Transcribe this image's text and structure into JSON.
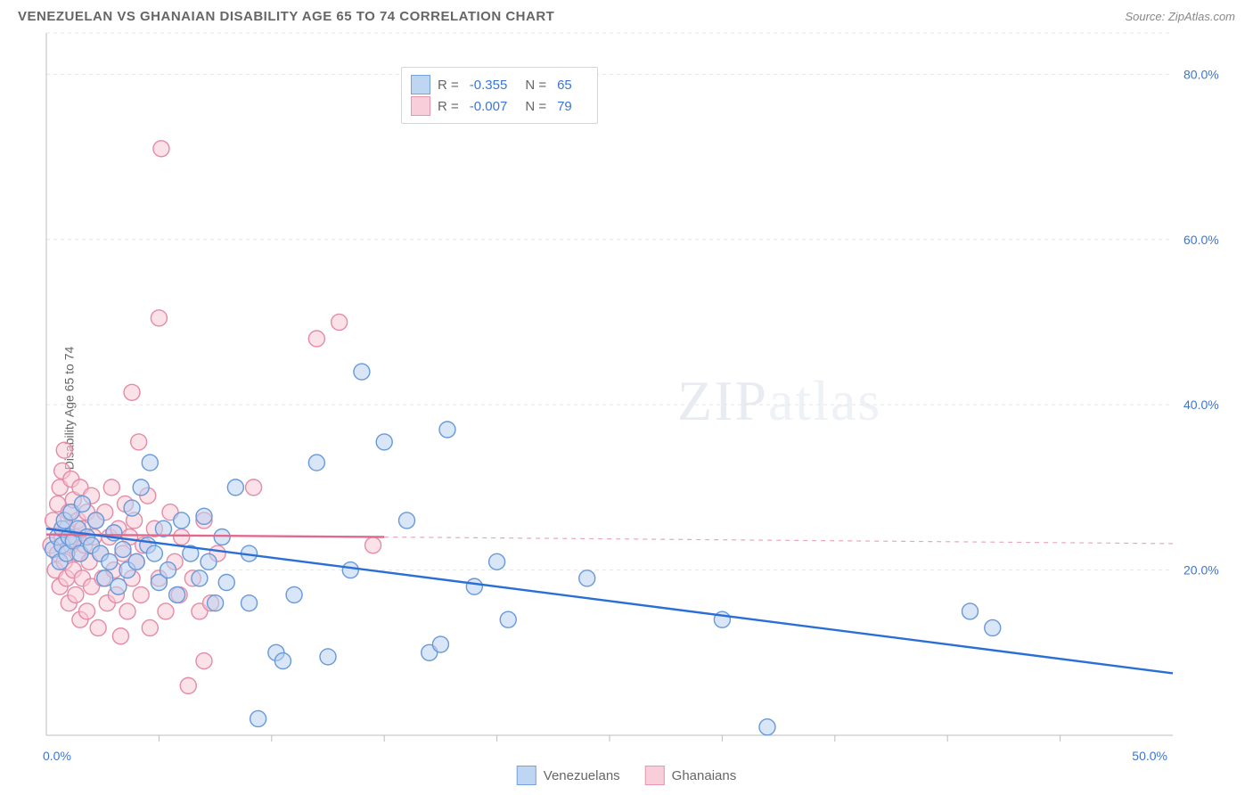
{
  "title": "VENEZUELAN VS GHANAIAN DISABILITY AGE 65 TO 74 CORRELATION CHART",
  "source": "Source: ZipAtlas.com",
  "ylabel": "Disability Age 65 to 74",
  "watermark": "ZIPatlas",
  "chart": {
    "type": "scatter-with-regression",
    "background_color": "#ffffff",
    "plot_border_color": "#bdbdbd",
    "grid_color": "#e6e6e6",
    "grid_dash": "4 4",
    "x_range_pct": [
      0,
      50
    ],
    "y_range_pct": [
      0,
      85
    ],
    "x_ticks_major_pct": [
      0,
      50
    ],
    "x_ticks_minor_pct": [
      5,
      10,
      15,
      20,
      25,
      30,
      35,
      40,
      45
    ],
    "y_ticks_pct": [
      20,
      40,
      60,
      80
    ],
    "x_tick_labels": {
      "0": "0.0%",
      "50": "50.0%"
    },
    "y_tick_labels": {
      "20": "20.0%",
      "40": "40.0%",
      "60": "60.0%",
      "80": "80.0%"
    },
    "marker_radius": 9,
    "marker_stroke_width": 1.4,
    "trend_line_width": 2.4,
    "series": [
      {
        "name": "Venezuelans",
        "fill": "#b9d2f1",
        "fill_opacity": 0.55,
        "stroke": "#6799da",
        "R": "-0.355",
        "N": "65",
        "trend_color": "#2a6fd6",
        "trend_start_pct": [
          0,
          25
        ],
        "trend_end_pct": [
          50,
          7.5
        ],
        "trend_dash_extent_pct": null,
        "points_pct": [
          [
            0.3,
            22.5
          ],
          [
            0.5,
            24
          ],
          [
            0.6,
            21
          ],
          [
            0.7,
            25
          ],
          [
            0.7,
            23
          ],
          [
            0.8,
            26
          ],
          [
            0.9,
            22
          ],
          [
            1,
            24
          ],
          [
            1.1,
            27
          ],
          [
            1.2,
            23.5
          ],
          [
            1.4,
            25
          ],
          [
            1.5,
            22
          ],
          [
            1.6,
            28
          ],
          [
            1.8,
            24
          ],
          [
            2,
            23
          ],
          [
            2.2,
            26
          ],
          [
            2.4,
            22
          ],
          [
            2.6,
            19
          ],
          [
            2.8,
            21
          ],
          [
            3,
            24.5
          ],
          [
            3.2,
            18
          ],
          [
            3.4,
            22.5
          ],
          [
            3.6,
            20
          ],
          [
            3.8,
            27.5
          ],
          [
            4,
            21
          ],
          [
            4.2,
            30
          ],
          [
            4.5,
            23
          ],
          [
            4.6,
            33
          ],
          [
            4.8,
            22
          ],
          [
            5,
            18.5
          ],
          [
            5.2,
            25
          ],
          [
            5.4,
            20
          ],
          [
            5.8,
            17
          ],
          [
            6,
            26
          ],
          [
            6.4,
            22
          ],
          [
            6.8,
            19
          ],
          [
            7,
            26.5
          ],
          [
            7.2,
            21
          ],
          [
            7.5,
            16
          ],
          [
            7.8,
            24
          ],
          [
            8,
            18.5
          ],
          [
            8.4,
            30
          ],
          [
            9,
            16
          ],
          [
            9,
            22
          ],
          [
            9.4,
            2
          ],
          [
            10.2,
            10
          ],
          [
            10.5,
            9
          ],
          [
            11,
            17
          ],
          [
            12,
            33
          ],
          [
            12.5,
            9.5
          ],
          [
            13.5,
            20
          ],
          [
            14,
            44
          ],
          [
            15,
            35.5
          ],
          [
            16,
            26
          ],
          [
            17,
            10
          ],
          [
            17.5,
            11
          ],
          [
            17.8,
            37
          ],
          [
            19,
            18
          ],
          [
            20,
            21
          ],
          [
            20.5,
            14
          ],
          [
            24,
            19
          ],
          [
            30,
            14
          ],
          [
            32,
            1
          ],
          [
            41,
            15
          ],
          [
            42,
            13
          ]
        ]
      },
      {
        "name": "Ghanaians",
        "fill": "#f7c9d6",
        "fill_opacity": 0.55,
        "stroke": "#e48ba5",
        "R": "-0.007",
        "N": "79",
        "trend_color": "#e06a8e",
        "trend_start_pct": [
          0,
          24.3
        ],
        "trend_end_pct": [
          15,
          24.0
        ],
        "trend_dash_extent_pct": [
          15,
          24.0,
          50,
          23.2
        ],
        "points_pct": [
          [
            0.2,
            23
          ],
          [
            0.3,
            26
          ],
          [
            0.4,
            20
          ],
          [
            0.5,
            28
          ],
          [
            0.5,
            22
          ],
          [
            0.6,
            30
          ],
          [
            0.6,
            18
          ],
          [
            0.7,
            24
          ],
          [
            0.7,
            32
          ],
          [
            0.8,
            21
          ],
          [
            0.8,
            34.5
          ],
          [
            0.9,
            25
          ],
          [
            0.9,
            19
          ],
          [
            1,
            27
          ],
          [
            1,
            16
          ],
          [
            1.1,
            23
          ],
          [
            1.1,
            31
          ],
          [
            1.2,
            20
          ],
          [
            1.2,
            28.5
          ],
          [
            1.3,
            24
          ],
          [
            1.3,
            17
          ],
          [
            1.4,
            26
          ],
          [
            1.4,
            22
          ],
          [
            1.5,
            30
          ],
          [
            1.5,
            14
          ],
          [
            1.6,
            25
          ],
          [
            1.6,
            19
          ],
          [
            1.7,
            23
          ],
          [
            1.8,
            27
          ],
          [
            1.8,
            15
          ],
          [
            1.9,
            21
          ],
          [
            2,
            29
          ],
          [
            2,
            18
          ],
          [
            2.1,
            24
          ],
          [
            2.2,
            26
          ],
          [
            2.3,
            13
          ],
          [
            2.4,
            22
          ],
          [
            2.5,
            19
          ],
          [
            2.6,
            27
          ],
          [
            2.7,
            16
          ],
          [
            2.8,
            24
          ],
          [
            2.9,
            30
          ],
          [
            3,
            20
          ],
          [
            3.1,
            17
          ],
          [
            3.2,
            25
          ],
          [
            3.3,
            12
          ],
          [
            3.4,
            22
          ],
          [
            3.5,
            28
          ],
          [
            3.6,
            15
          ],
          [
            3.7,
            24
          ],
          [
            3.8,
            19
          ],
          [
            3.8,
            41.5
          ],
          [
            3.9,
            26
          ],
          [
            4,
            21
          ],
          [
            4.1,
            35.5
          ],
          [
            4.2,
            17
          ],
          [
            4.3,
            23
          ],
          [
            4.5,
            29
          ],
          [
            4.6,
            13
          ],
          [
            4.8,
            25
          ],
          [
            5,
            19
          ],
          [
            5,
            50.5
          ],
          [
            5.1,
            71
          ],
          [
            5.3,
            15
          ],
          [
            5.5,
            27
          ],
          [
            5.7,
            21
          ],
          [
            5.9,
            17
          ],
          [
            6,
            24
          ],
          [
            6.3,
            6
          ],
          [
            6.5,
            19
          ],
          [
            6.8,
            15
          ],
          [
            7,
            26
          ],
          [
            7,
            9
          ],
          [
            7.3,
            16
          ],
          [
            7.6,
            22
          ],
          [
            9.2,
            30
          ],
          [
            12,
            48
          ],
          [
            13,
            50
          ],
          [
            14.5,
            23
          ]
        ]
      }
    ],
    "bottom_legend": [
      "Venezuelans",
      "Ghanaians"
    ]
  }
}
